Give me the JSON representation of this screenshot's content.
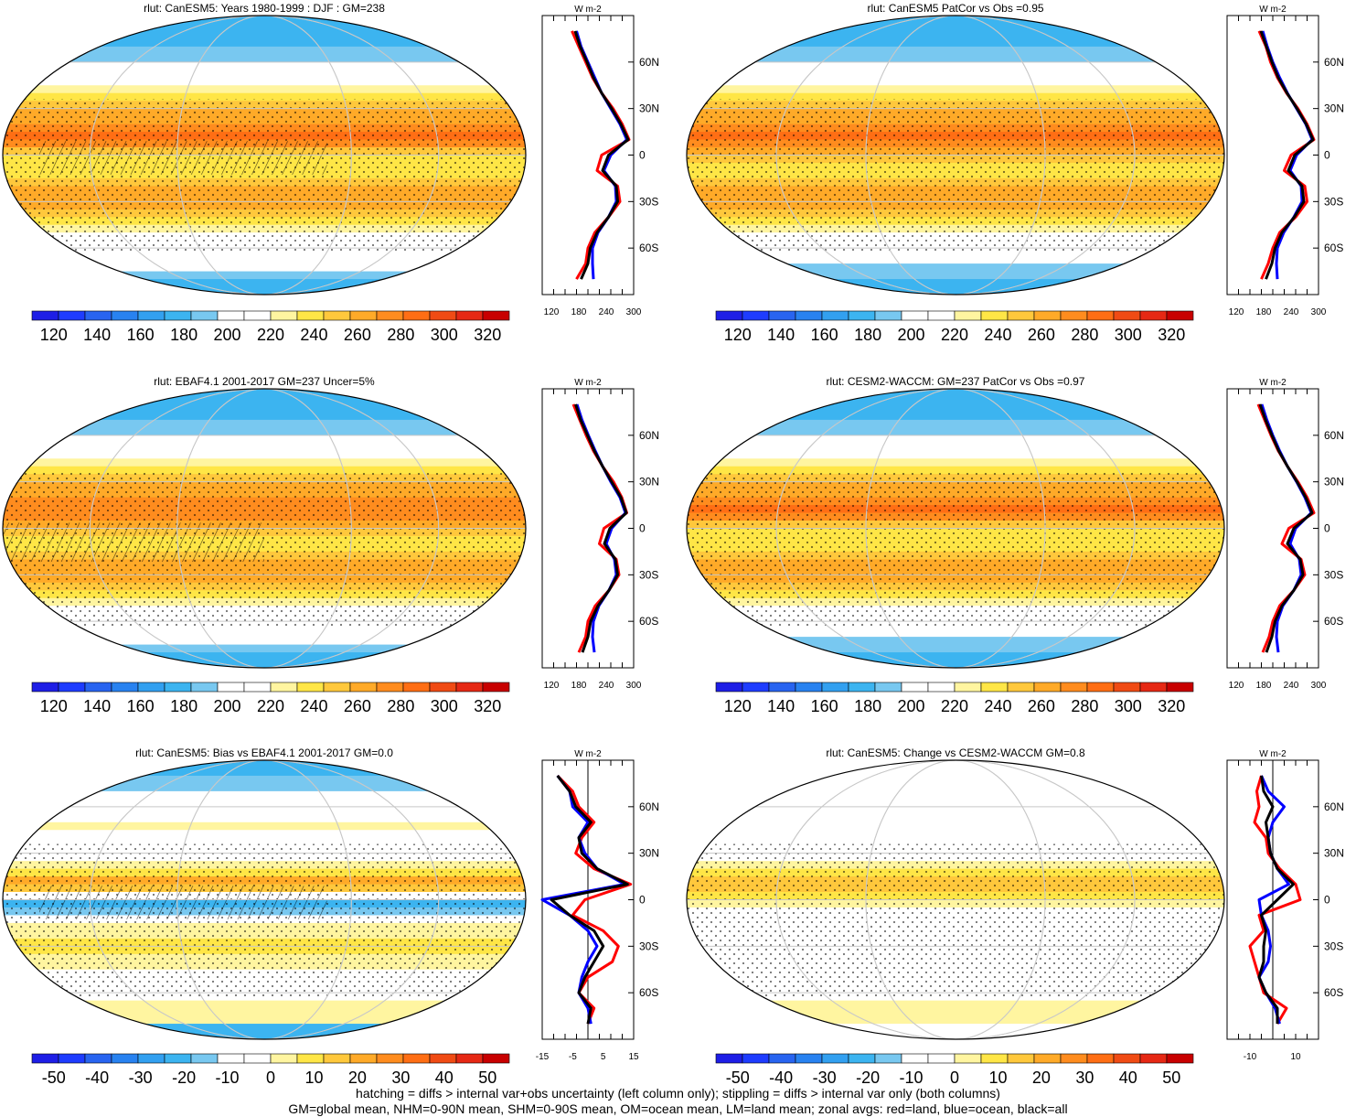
{
  "chart_data": [
    {
      "type": "heatmap",
      "title": "rlut: CanESM5: Years 1980-1999 : DJF : GM=238",
      "colorbar_ticks": [
        120,
        140,
        160,
        180,
        200,
        220,
        240,
        260,
        280,
        300,
        320
      ],
      "colorbar_range": [
        110,
        330
      ],
      "zonal_units": "W m-2",
      "zonal_xticks": [
        120,
        180,
        240,
        300
      ],
      "zonal_xlim": [
        100,
        300
      ],
      "zonal_yticks": [
        "60N",
        "30N",
        "0",
        "30S",
        "60S"
      ],
      "zonal_lat": [
        80,
        70,
        60,
        50,
        40,
        30,
        20,
        10,
        0,
        -10,
        -20,
        -30,
        -40,
        -50,
        -60,
        -70,
        -80
      ],
      "zonal_series": [
        {
          "color": "#ff0000",
          "values": [
            165,
            180,
            195,
            210,
            230,
            255,
            275,
            290,
            230,
            220,
            265,
            270,
            245,
            215,
            200,
            195,
            175
          ]
        },
        {
          "color": "#0000ff",
          "values": [
            175,
            185,
            200,
            215,
            230,
            250,
            270,
            285,
            250,
            235,
            260,
            262,
            245,
            222,
            210,
            210,
            212
          ]
        },
        {
          "color": "#000000",
          "values": [
            172,
            183,
            198,
            212,
            230,
            252,
            272,
            288,
            245,
            232,
            262,
            265,
            245,
            220,
            205,
            200,
            185
          ]
        }
      ]
    },
    {
      "type": "heatmap",
      "title": "rlut: CanESM5 PatCor vs Obs =0.95",
      "colorbar_ticks": [
        120,
        140,
        160,
        180,
        200,
        220,
        240,
        260,
        280,
        300,
        320
      ],
      "colorbar_range": [
        110,
        330
      ],
      "zonal_units": "W m-2",
      "zonal_xticks": [
        120,
        180,
        240,
        300
      ],
      "zonal_xlim": [
        100,
        300
      ],
      "zonal_yticks": [
        "60N",
        "30N",
        "0",
        "30S",
        "60S"
      ],
      "zonal_lat": [
        80,
        70,
        60,
        50,
        40,
        30,
        20,
        10,
        0,
        -10,
        -20,
        -30,
        -40,
        -50,
        -60,
        -70,
        -80
      ],
      "zonal_series": [
        {
          "color": "#ff0000",
          "values": [
            170,
            185,
            195,
            210,
            230,
            255,
            275,
            290,
            240,
            225,
            270,
            275,
            250,
            215,
            200,
            190,
            175
          ]
        },
        {
          "color": "#0000ff",
          "values": [
            178,
            188,
            200,
            215,
            232,
            252,
            272,
            286,
            252,
            238,
            262,
            264,
            246,
            224,
            210,
            208,
            210
          ]
        },
        {
          "color": "#000000",
          "values": [
            174,
            186,
            198,
            212,
            231,
            253,
            273,
            288,
            248,
            234,
            264,
            268,
            247,
            220,
            205,
            198,
            185
          ]
        }
      ]
    },
    {
      "type": "heatmap",
      "title": "rlut: EBAF4.1 2001-2017 GM=237 Uncer=5%",
      "colorbar_ticks": [
        120,
        140,
        160,
        180,
        200,
        220,
        240,
        260,
        280,
        300,
        320
      ],
      "colorbar_range": [
        110,
        330
      ],
      "zonal_units": "W m-2",
      "zonal_xticks": [
        120,
        180,
        240,
        300
      ],
      "zonal_xlim": [
        100,
        300
      ],
      "zonal_yticks": [
        "60N",
        "30N",
        "0",
        "30S",
        "60S"
      ],
      "zonal_lat": [
        80,
        70,
        60,
        50,
        40,
        30,
        20,
        10,
        0,
        -10,
        -20,
        -30,
        -40,
        -50,
        -60,
        -70,
        -80
      ],
      "zonal_series": [
        {
          "color": "#ff0000",
          "values": [
            168,
            182,
            196,
            212,
            232,
            256,
            274,
            285,
            235,
            225,
            262,
            268,
            246,
            216,
            200,
            195,
            180
          ]
        },
        {
          "color": "#0000ff",
          "values": [
            176,
            187,
            201,
            216,
            232,
            250,
            270,
            282,
            252,
            240,
            258,
            262,
            246,
            224,
            212,
            210,
            214
          ]
        },
        {
          "color": "#000000",
          "values": [
            173,
            184,
            199,
            214,
            232,
            252,
            272,
            284,
            248,
            236,
            260,
            265,
            246,
            222,
            206,
            200,
            188
          ]
        }
      ]
    },
    {
      "type": "heatmap",
      "title": "rlut: CESM2-WACCM: GM=237 PatCor vs Obs =0.97",
      "colorbar_ticks": [
        120,
        140,
        160,
        180,
        200,
        220,
        240,
        260,
        280,
        300,
        320
      ],
      "colorbar_range": [
        110,
        330
      ],
      "zonal_units": "W m-2",
      "zonal_xticks": [
        120,
        180,
        240,
        300
      ],
      "zonal_xlim": [
        100,
        300
      ],
      "zonal_yticks": [
        "60N",
        "30N",
        "0",
        "30S",
        "60S"
      ],
      "zonal_lat": [
        80,
        70,
        60,
        50,
        40,
        30,
        20,
        10,
        0,
        -10,
        -20,
        -30,
        -40,
        -50,
        -60,
        -70,
        -80
      ],
      "zonal_series": [
        {
          "color": "#ff0000",
          "values": [
            168,
            182,
            196,
            212,
            232,
            255,
            275,
            290,
            235,
            220,
            262,
            270,
            246,
            215,
            200,
            192,
            178
          ]
        },
        {
          "color": "#0000ff",
          "values": [
            176,
            187,
            200,
            215,
            232,
            252,
            270,
            284,
            250,
            238,
            258,
            262,
            246,
            222,
            210,
            208,
            212
          ]
        },
        {
          "color": "#000000",
          "values": [
            172,
            184,
            198,
            213,
            232,
            253,
            272,
            286,
            246,
            232,
            260,
            266,
            246,
            220,
            205,
            198,
            186
          ]
        }
      ]
    },
    {
      "type": "heatmap",
      "title": "rlut: CanESM5: Bias vs EBAF4.1 2001-2017 GM=0.0",
      "colorbar_ticks": [
        -50,
        -40,
        -30,
        -20,
        -10,
        0,
        10,
        20,
        30,
        40,
        50
      ],
      "colorbar_range": [
        -55,
        55
      ],
      "zonal_units": "W m-2",
      "zonal_xticks": [
        -15,
        -5,
        5,
        15
      ],
      "zonal_xlim": [
        -15,
        15
      ],
      "zonal_yticks": [
        "60N",
        "30N",
        "0",
        "30S",
        "60S"
      ],
      "zonal_lat": [
        80,
        70,
        60,
        50,
        40,
        30,
        20,
        10,
        0,
        -10,
        -20,
        -30,
        -40,
        -50,
        -60,
        -70,
        -80
      ],
      "zonal_series": [
        {
          "color": "#ff0000",
          "values": [
            -10,
            -5,
            -3,
            2,
            -2,
            -4,
            2,
            14,
            -1,
            -5,
            5,
            10,
            8,
            0,
            -3,
            2,
            0
          ]
        },
        {
          "color": "#0000ff",
          "values": [
            -10,
            -6,
            -5,
            0,
            -3,
            -1,
            3,
            12,
            -15,
            -6,
            0,
            3,
            0,
            -2,
            -3,
            0,
            1
          ]
        },
        {
          "color": "#000000",
          "values": [
            -10,
            -6,
            -4,
            1,
            -3,
            -2,
            3,
            13,
            -12,
            -6,
            2,
            5,
            2,
            -1,
            -3,
            1,
            0
          ]
        }
      ]
    },
    {
      "type": "heatmap",
      "title": "rlut: CanESM5: Change vs CESM2-WACCM GM=0.8",
      "colorbar_ticks": [
        -50,
        -40,
        -30,
        -20,
        -10,
        0,
        10,
        20,
        30,
        40,
        50
      ],
      "colorbar_range": [
        -55,
        55
      ],
      "zonal_units": "W m-2",
      "zonal_xticks": [
        -10,
        10
      ],
      "zonal_xlim": [
        -20,
        20
      ],
      "zonal_yticks": [
        "60N",
        "30N",
        "0",
        "30S",
        "60S"
      ],
      "zonal_lat": [
        80,
        70,
        60,
        50,
        40,
        30,
        20,
        10,
        0,
        -10,
        -20,
        -30,
        -40,
        -50,
        -60,
        -70,
        -80
      ],
      "zonal_series": [
        {
          "color": "#ff0000",
          "values": [
            -5,
            -7,
            -6,
            -8,
            -3,
            -2,
            3,
            10,
            12,
            -6,
            -4,
            -10,
            -8,
            -6,
            -4,
            6,
            2
          ]
        },
        {
          "color": "#0000ff",
          "values": [
            -5,
            -2,
            5,
            0,
            -2,
            -1,
            2,
            7,
            -6,
            -5,
            -2,
            -1,
            -2,
            -6,
            -3,
            1,
            3
          ]
        },
        {
          "color": "#000000",
          "values": [
            -5,
            -4,
            0,
            -3,
            -2,
            -1,
            2,
            9,
            2,
            -5,
            -3,
            -4,
            -4,
            -6,
            -3,
            2,
            2
          ]
        }
      ]
    }
  ],
  "footer": {
    "line1": "hatching = diffs > internal var+obs uncertainty (left column only); stippling = diffs > internal var only (both columns)",
    "line2": "GM=global mean, NHM=0-90N mean, SHM=0-90S mean, OM=ocean mean, LM=land mean; zonal avgs: red=land, blue=ocean, black=all"
  },
  "colors": {
    "abs_scale": [
      "#1e1ee6",
      "#1e3cff",
      "#2864f0",
      "#2882f0",
      "#32a0f0",
      "#3cb4f0",
      "#78c8f0",
      "#ffffff",
      "#ffffff",
      "#fff5a0",
      "#ffe646",
      "#ffc83c",
      "#ffaa28",
      "#ff8c1e",
      "#ff6e14",
      "#f04b14",
      "#e62814",
      "#c80000"
    ],
    "diff_scale": [
      "#1e1ee6",
      "#1e3cff",
      "#2864f0",
      "#2882f0",
      "#32a0f0",
      "#3cb4f0",
      "#78c8f0",
      "#ffffff",
      "#ffffff",
      "#fff5a0",
      "#ffe646",
      "#ffc83c",
      "#ffaa28",
      "#ff8c1e",
      "#ff6e14",
      "#f04b14",
      "#e62814",
      "#c80000"
    ]
  }
}
